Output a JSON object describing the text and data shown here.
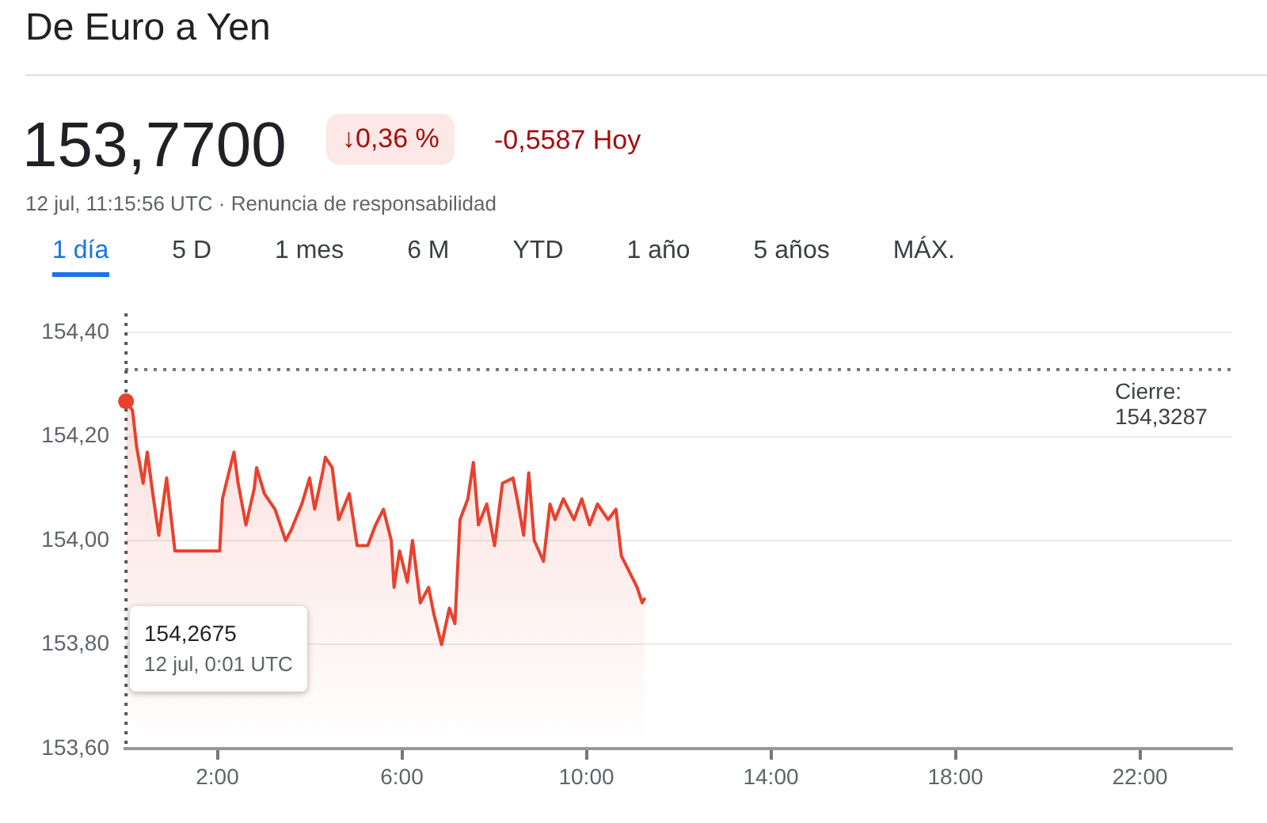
{
  "chart_data": {
    "type": "area",
    "title": "De Euro a Yen",
    "subtitle": "12 jul, 11:15:56 UTC · Renuncia de responsabilidad",
    "annotations": [
      "153,7700",
      "↓0,36 %",
      "-0,5587 Hoy",
      "154,2675\n12 jul, 0:01 UTC",
      "1 día",
      "5 D",
      "1 mes",
      "6 M",
      "YTD",
      "1 año",
      "5 años",
      "MÁX."
    ],
    "x": [
      0.02,
      0.16,
      0.25,
      0.39,
      0.48,
      0.6,
      0.73,
      0.9,
      1.08,
      1.19,
      1.65,
      2.05,
      2.11,
      2.22,
      2.36,
      2.45,
      2.62,
      2.8,
      2.85,
      3.02,
      3.25,
      3.48,
      3.6,
      3.83,
      4.0,
      4.11,
      4.28,
      4.34,
      4.49,
      4.63,
      4.86,
      5.03,
      5.26,
      5.43,
      5.6,
      5.77,
      5.83,
      5.95,
      6.12,
      6.23,
      6.4,
      6.58,
      6.69,
      6.86,
      7.03,
      7.15,
      7.26,
      7.43,
      7.55,
      7.66,
      7.84,
      8.01,
      8.18,
      8.41,
      8.52,
      8.64,
      8.75,
      8.87,
      9.07,
      9.21,
      9.32,
      9.5,
      9.73,
      9.9,
      10.07,
      10.24,
      10.47,
      10.64,
      10.76,
      10.93,
      11.1,
      11.21,
      11.27
    ],
    "series": [
      {
        "color": "#e8412e",
        "values": [
          154.2675,
          154.25,
          154.18,
          154.11,
          154.17,
          154.09,
          154.01,
          154.12,
          153.98,
          153.98,
          153.98,
          153.98,
          154.08,
          154.12,
          154.17,
          154.11,
          154.03,
          154.1,
          154.14,
          154.09,
          154.06,
          154.0,
          154.02,
          154.07,
          154.12,
          154.06,
          154.13,
          154.16,
          154.14,
          154.04,
          154.09,
          153.99,
          153.99,
          154.03,
          154.06,
          154.0,
          153.91,
          153.98,
          153.92,
          154.0,
          153.88,
          153.91,
          153.86,
          153.8,
          153.87,
          153.84,
          154.04,
          154.08,
          154.15,
          154.03,
          154.07,
          153.99,
          154.11,
          154.12,
          154.07,
          154.01,
          154.13,
          154.0,
          153.96,
          154.07,
          154.04,
          154.08,
          154.04,
          154.08,
          154.03,
          154.07,
          154.04,
          154.06,
          153.97,
          153.94,
          153.91,
          153.88,
          153.89
        ]
      }
    ],
    "xlim": [
      0,
      24
    ],
    "xticks": [
      {
        "value": 2,
        "label": "2:00"
      },
      {
        "value": 6,
        "label": "6:00"
      },
      {
        "value": 10,
        "label": "10:00"
      },
      {
        "value": 14,
        "label": "14:00"
      },
      {
        "value": 18,
        "label": "18:00"
      },
      {
        "value": 22,
        "label": "22:00"
      }
    ],
    "ylim": [
      153.6,
      154.4
    ],
    "yticks": [
      {
        "value": 153.6,
        "label": "153,60"
      },
      {
        "value": 153.8,
        "label": "153,80"
      },
      {
        "value": 154.0,
        "label": "154,00"
      },
      {
        "value": 154.2,
        "label": "154,20"
      },
      {
        "value": 154.4,
        "label": "154,40"
      }
    ],
    "ref_lines": [
      {
        "axis": "y",
        "value": 154.3287,
        "label": "Cierre: 154,3287",
        "line_style": "dotted",
        "color": "#777777"
      },
      {
        "axis": "x",
        "value": 0.02,
        "line_style": "dotted",
        "color": "#555555"
      }
    ],
    "grid": "y",
    "legend": false,
    "marker": "none",
    "line_style": "solid"
  }
}
